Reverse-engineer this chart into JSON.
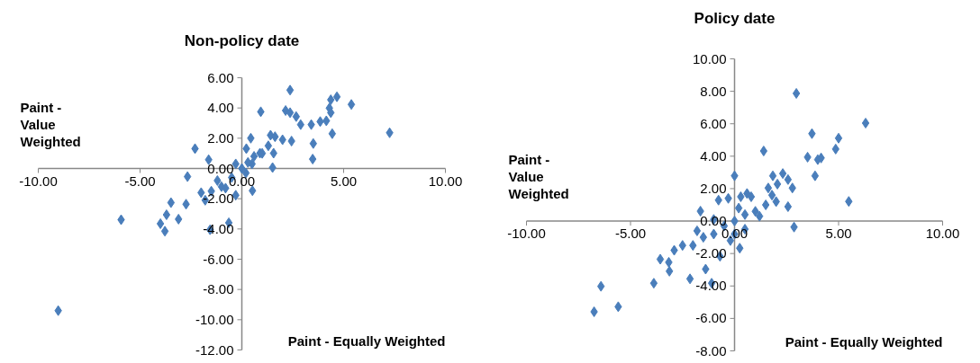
{
  "chart_data": [
    {
      "type": "scatter",
      "title": "Non-policy date",
      "xlabel": "Paint - Equally Weighted",
      "ylabel": "Paint - Value Weighted",
      "marker": "diamond",
      "grid": false,
      "xlim": [
        -10,
        10
      ],
      "ylim": [
        -12,
        6
      ],
      "xticks": [
        {
          "value": -10,
          "label": "-10.00"
        },
        {
          "value": -5,
          "label": "-5.00"
        },
        {
          "value": 0,
          "label": "0.00"
        },
        {
          "value": 5,
          "label": "5.00"
        },
        {
          "value": 10,
          "label": "10.00"
        }
      ],
      "yticks": [
        {
          "value": -12,
          "label": "-12.00"
        },
        {
          "value": -10,
          "label": "-10.00"
        },
        {
          "value": -8,
          "label": "-8.00"
        },
        {
          "value": -6,
          "label": "-6.00"
        },
        {
          "value": -4,
          "label": "-4.00"
        },
        {
          "value": -2,
          "label": "-2.00"
        },
        {
          "value": 0,
          "label": "0.00"
        },
        {
          "value": 2,
          "label": "2.00"
        },
        {
          "value": 4,
          "label": "4.00"
        },
        {
          "value": 6,
          "label": "6.00"
        }
      ],
      "series": [
        {
          "color": "#4a7ebb",
          "x": [
            2.37,
            4.67,
            4.37,
            5.38,
            0.93,
            2.15,
            2.37,
            2.67,
            2.89,
            3.41,
            3.85,
            4.15,
            4.3,
            4.37,
            4.44,
            7.26,
            3.51,
            3.48,
            0.44,
            0.22,
            1.41,
            1.63,
            2.0,
            2.44,
            1.56,
            1.51,
            0.89,
            -2.3,
            -1.63,
            -2.67,
            -3.48,
            -3.7,
            -3.11,
            -5.93,
            -4.0,
            -3.78,
            -1.56,
            -0.64,
            -2.74,
            -0.3,
            0.52,
            -1.5,
            -1.0,
            -0.5,
            0.0,
            0.3,
            0.6,
            1.0,
            -1.2,
            -0.8,
            0.2,
            -0.3,
            1.3,
            0.5,
            -2.0,
            -1.8,
            -9.02
          ],
          "values": [
            5.18,
            4.74,
            4.54,
            4.23,
            3.75,
            3.83,
            3.69,
            3.43,
            2.9,
            2.9,
            3.1,
            3.15,
            3.99,
            3.69,
            2.3,
            2.36,
            1.65,
            0.62,
            2.0,
            1.31,
            2.2,
            2.1,
            1.9,
            1.81,
            1.01,
            0.06,
            1.01,
            1.31,
            0.58,
            -0.54,
            -2.26,
            -3.06,
            -3.35,
            -3.39,
            -3.65,
            -4.15,
            -4.05,
            -3.59,
            -2.36,
            -1.77,
            -1.47,
            -1.5,
            -1.2,
            -0.6,
            0.0,
            0.4,
            0.8,
            1.0,
            -0.8,
            -1.3,
            -0.3,
            0.3,
            1.5,
            0.3,
            -1.6,
            -2.1,
            -9.4
          ]
        }
      ]
    },
    {
      "type": "scatter",
      "title": "Policy date",
      "xlabel": "Paint - Equally Weighted",
      "ylabel": "Paint - Value Weighted",
      "marker": "diamond",
      "grid": false,
      "xlim": [
        -10,
        10
      ],
      "ylim": [
        -8,
        10
      ],
      "xticks": [
        {
          "value": -10,
          "label": "-10.00"
        },
        {
          "value": -5,
          "label": "-5.00"
        },
        {
          "value": 0,
          "label": "0.00"
        },
        {
          "value": 5,
          "label": "5.00"
        },
        {
          "value": 10,
          "label": "10.00"
        }
      ],
      "yticks": [
        {
          "value": -8,
          "label": "-8.00"
        },
        {
          "value": -6,
          "label": "-6.00"
        },
        {
          "value": -4,
          "label": "-4.00"
        },
        {
          "value": -2,
          "label": "-2.00"
        },
        {
          "value": 0,
          "label": "0.00"
        },
        {
          "value": 2,
          "label": "2.00"
        },
        {
          "value": 4,
          "label": "4.00"
        },
        {
          "value": 6,
          "label": "6.00"
        },
        {
          "value": 8,
          "label": "8.00"
        },
        {
          "value": 10,
          "label": "10.00"
        }
      ],
      "series": [
        {
          "color": "#4a7ebb",
          "x": [
            2.97,
            3.72,
            1.4,
            3.51,
            4.0,
            0.0,
            1.84,
            2.32,
            2.57,
            3.87,
            2.78,
            1.62,
            2.06,
            6.3,
            5.0,
            4.86,
            4.16,
            5.49,
            -6.42,
            -6.75,
            -5.59,
            -3.88,
            -3.57,
            -3.16,
            -3.13,
            -2.9,
            -2.14,
            -1.39,
            -1.1,
            -0.77,
            -1.64,
            2.57,
            2.86,
            0.25,
            -0.7,
            -2.0,
            -1.5,
            -1.0,
            -0.5,
            0.0,
            0.5,
            1.0,
            1.5,
            0.3,
            -0.3,
            0.6,
            0.8,
            2.0,
            1.8,
            -0.2,
            0.5,
            -1.0,
            1.2,
            -2.5,
            -1.8,
            0.0,
            0.2
          ],
          "values": [
            7.87,
            5.39,
            4.32,
            3.94,
            3.79,
            2.79,
            2.79,
            2.93,
            2.56,
            2.79,
            2.04,
            2.04,
            2.28,
            6.04,
            5.11,
            4.44,
            3.89,
            1.21,
            -4.02,
            -5.59,
            -5.28,
            -3.83,
            -2.35,
            -2.54,
            -3.09,
            -1.8,
            -3.56,
            -2.96,
            -3.83,
            1.29,
            0.61,
            0.89,
            -0.37,
            -1.67,
            -2.17,
            -1.5,
            -1.0,
            -0.8,
            -0.3,
            0.0,
            0.4,
            0.6,
            1.0,
            1.5,
            1.4,
            1.7,
            1.5,
            1.2,
            1.6,
            -1.2,
            -0.5,
            0.1,
            0.3,
            -1.5,
            -0.6,
            -0.8,
            0.8
          ]
        }
      ]
    }
  ]
}
